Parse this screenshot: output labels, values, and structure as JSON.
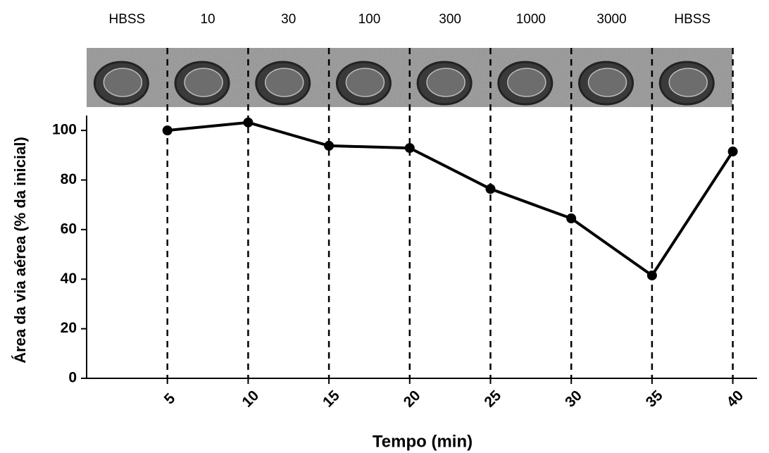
{
  "chart_data": {
    "type": "line",
    "x_label": "Tempo (min)",
    "y_label": "Área da via aérea (% da inicial)",
    "top_labels": [
      "HBSS",
      "10",
      "30",
      "100",
      "300",
      "1000",
      "3000",
      "HBSS"
    ],
    "x": [
      5,
      10,
      15,
      20,
      25,
      30,
      35,
      40
    ],
    "values": [
      100,
      103.2,
      93.8,
      92.9,
      76.4,
      64.5,
      41.5,
      91.5
    ],
    "color": "#000000",
    "xlim": [
      0,
      41.5
    ],
    "xticks": [
      5,
      10,
      15,
      20,
      25,
      30,
      35,
      40
    ],
    "ylim": [
      0,
      106
    ],
    "yticks": [
      0,
      20,
      40,
      60,
      80,
      100
    ]
  }
}
